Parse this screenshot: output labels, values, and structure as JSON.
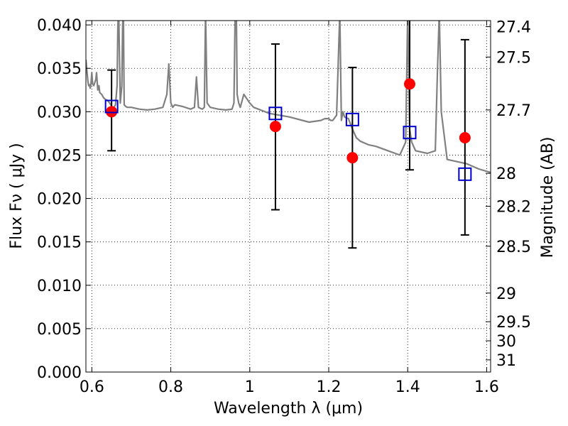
{
  "chart_data": {
    "type": "scatter",
    "title": "",
    "xlabel": "Wavelength  λ (μm)",
    "ylabel": "Flux  Fν  ( μJy )",
    "ylabel_right": "Magnitude (AB)",
    "xlim": [
      0.585,
      1.61
    ],
    "ylim": [
      0.0,
      0.0405
    ],
    "x_ticks": [
      0.6,
      0.8,
      1.0,
      1.2,
      1.4,
      1.6
    ],
    "x_tick_labels": [
      "0.6",
      "0.8",
      "1",
      "1.2",
      "1.4",
      "1.6"
    ],
    "y_ticks": [
      0.0,
      0.005,
      0.01,
      0.015,
      0.02,
      0.025,
      0.03,
      0.035,
      0.04
    ],
    "y_tick_labels": [
      "0.000",
      "0.005",
      "0.010",
      "0.015",
      "0.020",
      "0.025",
      "0.030",
      "0.035",
      "0.040"
    ],
    "right_ticks": [
      {
        "label": "27.4",
        "flux": 0.0398
      },
      {
        "label": "27.5",
        "flux": 0.0363
      },
      {
        "label": "27.7",
        "flux": 0.0302
      },
      {
        "label": "28",
        "flux": 0.0229
      },
      {
        "label": "28.2",
        "flux": 0.0191
      },
      {
        "label": "28.5",
        "flux": 0.0145
      },
      {
        "label": "29",
        "flux": 0.0091
      },
      {
        "label": "29.5",
        "flux": 0.0058
      },
      {
        "label": "30",
        "flux": 0.0036
      },
      {
        "label": "31",
        "flux": 0.0014
      }
    ],
    "grid": true,
    "series": [
      {
        "kind": "observed",
        "color": "#ff0000",
        "marker": "circle",
        "x": [
          0.65,
          1.065,
          1.26,
          1.405,
          1.545
        ],
        "y": [
          0.03,
          0.0283,
          0.0247,
          0.0332,
          0.027
        ],
        "yerr_low": [
          0.0255,
          0.0187,
          0.0143,
          0.0233,
          0.0158
        ],
        "yerr_high": [
          0.0348,
          0.0378,
          0.0351,
          0.0405,
          0.0383
        ]
      },
      {
        "kind": "model",
        "color": "#0000cc",
        "marker": "open-square",
        "x": [
          0.65,
          1.065,
          1.26,
          1.405,
          1.545
        ],
        "y": [
          0.0306,
          0.0298,
          0.0291,
          0.0276,
          0.0228
        ]
      },
      {
        "kind": "template-sed",
        "color": "#808080",
        "marker": "line",
        "x": [
          0.585,
          0.59,
          0.592,
          0.594,
          0.596,
          0.598,
          0.6,
          0.602,
          0.605,
          0.61,
          0.612,
          0.615,
          0.618,
          0.62,
          0.625,
          0.63,
          0.635,
          0.64,
          0.645,
          0.648,
          0.652,
          0.656,
          0.66,
          0.664,
          0.666,
          0.668,
          0.672,
          0.676,
          0.678,
          0.68,
          0.682,
          0.686,
          0.69,
          0.7,
          0.72,
          0.74,
          0.76,
          0.78,
          0.79,
          0.795,
          0.8,
          0.805,
          0.81,
          0.83,
          0.85,
          0.86,
          0.865,
          0.87,
          0.88,
          0.885,
          0.888,
          0.892,
          0.9,
          0.92,
          0.94,
          0.955,
          0.96,
          0.963,
          0.966,
          0.968,
          0.972,
          0.976,
          0.985,
          1.0,
          1.01,
          1.05,
          1.1,
          1.15,
          1.18,
          1.19,
          1.2,
          1.205,
          1.21,
          1.22,
          1.228,
          1.232,
          1.236,
          1.24,
          1.25,
          1.26,
          1.27,
          1.28,
          1.3,
          1.32,
          1.35,
          1.38,
          1.395,
          1.4,
          1.405,
          1.41,
          1.42,
          1.45,
          1.47,
          1.475,
          1.48,
          1.485,
          1.5,
          1.55,
          1.58,
          1.61
        ],
        "y": [
          0.036,
          0.0335,
          0.033,
          0.0331,
          0.0327,
          0.0333,
          0.0345,
          0.0332,
          0.033,
          0.0337,
          0.0345,
          0.0325,
          0.033,
          0.0322,
          0.032,
          0.0316,
          0.0314,
          0.0313,
          0.031,
          0.0308,
          0.0305,
          0.0305,
          0.0308,
          0.033,
          0.04,
          0.0415,
          0.031,
          0.033,
          0.04,
          0.0415,
          0.0308,
          0.0306,
          0.0305,
          0.0305,
          0.0303,
          0.0302,
          0.0303,
          0.0305,
          0.032,
          0.0355,
          0.031,
          0.0305,
          0.0308,
          0.0306,
          0.0303,
          0.0305,
          0.034,
          0.0305,
          0.0303,
          0.0305,
          0.0415,
          0.031,
          0.0305,
          0.0303,
          0.0302,
          0.0303,
          0.031,
          0.0415,
          0.0415,
          0.032,
          0.031,
          0.0305,
          0.032,
          0.031,
          0.0305,
          0.0298,
          0.0294,
          0.0288,
          0.029,
          0.0292,
          0.0292,
          0.029,
          0.029,
          0.0296,
          0.0415,
          0.029,
          0.03,
          0.0294,
          0.0292,
          0.028,
          0.027,
          0.0266,
          0.0262,
          0.026,
          0.0255,
          0.025,
          0.0265,
          0.0415,
          0.028,
          0.0265,
          0.0255,
          0.0252,
          0.0255,
          0.034,
          0.0415,
          0.03,
          0.0245,
          0.024,
          0.0234,
          0.023
        ]
      }
    ]
  }
}
